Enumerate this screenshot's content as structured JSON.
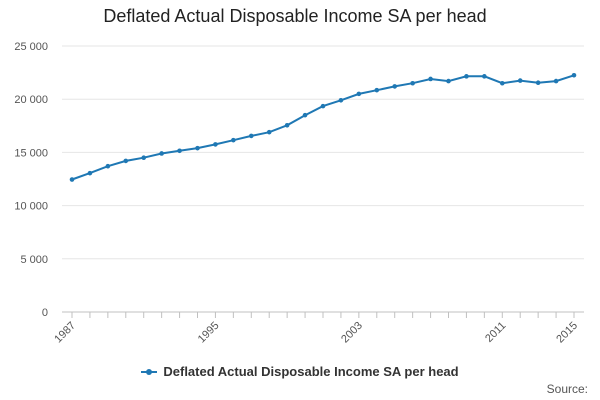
{
  "chart_data": {
    "type": "line",
    "title": "Deflated Actual Disposable Income SA per head",
    "xlabel": "",
    "ylabel": "",
    "x": [
      1987,
      1988,
      1989,
      1990,
      1991,
      1992,
      1993,
      1994,
      1995,
      1996,
      1997,
      1998,
      1999,
      2000,
      2001,
      2002,
      2003,
      2004,
      2005,
      2006,
      2007,
      2008,
      2009,
      2010,
      2011,
      2012,
      2013,
      2014,
      2015
    ],
    "series": [
      {
        "name": "Deflated Actual Disposable Income SA per head",
        "color": "#1f78b4",
        "values": [
          12450,
          13050,
          13700,
          14200,
          14500,
          14900,
          15150,
          15400,
          15750,
          16150,
          16550,
          16900,
          17550,
          18500,
          19350,
          19900,
          20500,
          20850,
          21200,
          21500,
          21900,
          21700,
          22150,
          22150,
          21500,
          21750,
          21550,
          21700,
          22250
        ]
      }
    ],
    "ylim": [
      0,
      25000
    ],
    "yticks": [
      0,
      5000,
      10000,
      15000,
      20000,
      25000
    ],
    "ytick_labels": [
      "0",
      "5 000",
      "10 000",
      "15 000",
      "20 000",
      "25 000"
    ],
    "xtick_labels": [
      "1987",
      "1995",
      "2003",
      "2011",
      "2015"
    ],
    "grid": true,
    "legend_position": "bottom"
  },
  "source_label": "Source:"
}
